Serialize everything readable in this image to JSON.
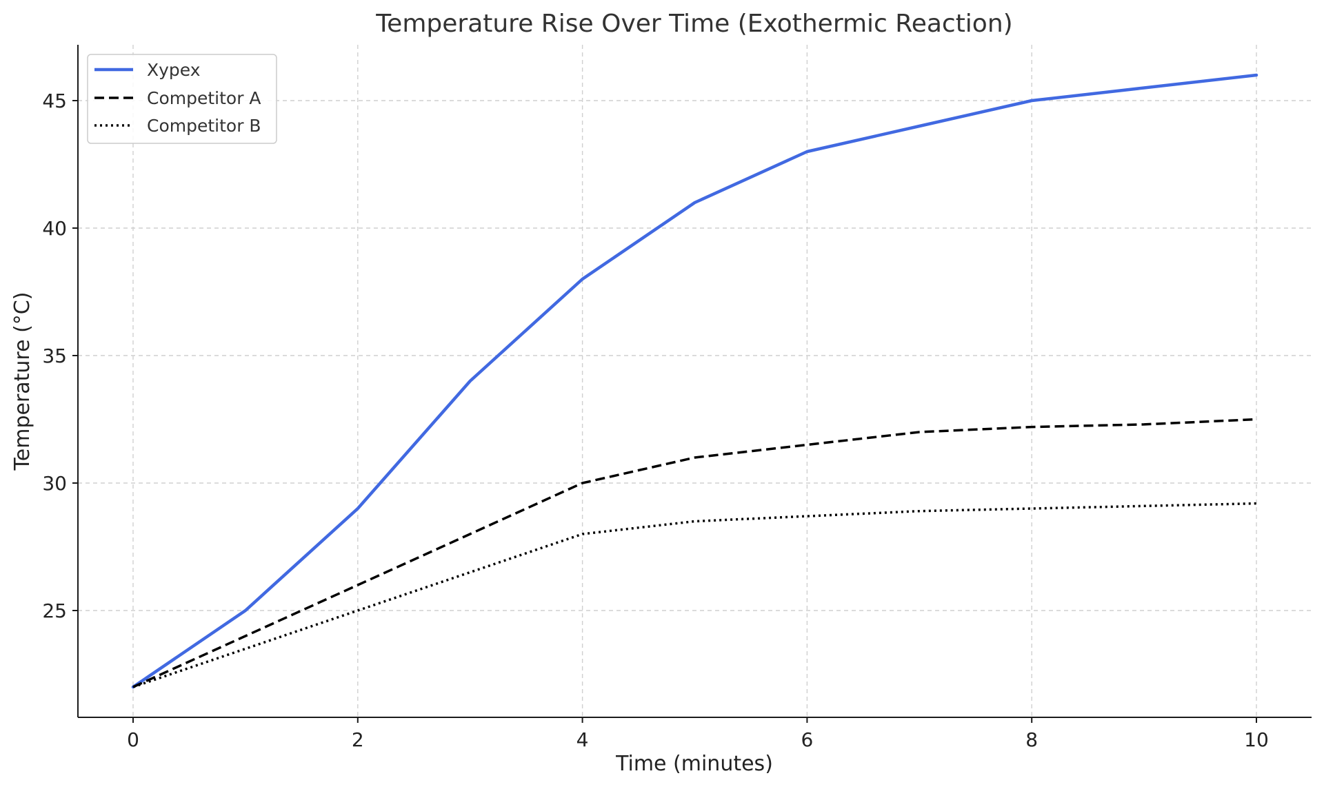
{
  "chart_data": {
    "type": "line",
    "title": "Temperature Rise Over Time (Exothermic Reaction)",
    "xlabel": "Time (minutes)",
    "ylabel": "Temperature (°C)",
    "x": [
      0,
      1,
      2,
      3,
      4,
      5,
      6,
      7,
      8,
      9,
      10
    ],
    "xlim": [
      -0.5,
      10.5
    ],
    "ylim": [
      20.9,
      47.2
    ],
    "xticks": [
      0,
      2,
      4,
      6,
      8,
      10
    ],
    "yticks": [
      25,
      30,
      35,
      40,
      45
    ],
    "grid": true,
    "legend_position": "top-left",
    "series": [
      {
        "name": "Xypex",
        "color": "#4169E1",
        "style": "solid",
        "values": [
          22,
          25,
          29,
          34,
          38,
          41,
          43,
          44,
          45,
          45.5,
          46
        ]
      },
      {
        "name": "Competitor A",
        "color": "#000000",
        "style": "dashed",
        "values": [
          22,
          24,
          26,
          28,
          30,
          31,
          31.5,
          32,
          32.2,
          32.3,
          32.5
        ]
      },
      {
        "name": "Competitor B",
        "color": "#000000",
        "style": "dotted",
        "values": [
          22,
          23.5,
          25,
          26.5,
          28,
          28.5,
          28.7,
          28.9,
          29,
          29.1,
          29.2
        ]
      }
    ]
  }
}
